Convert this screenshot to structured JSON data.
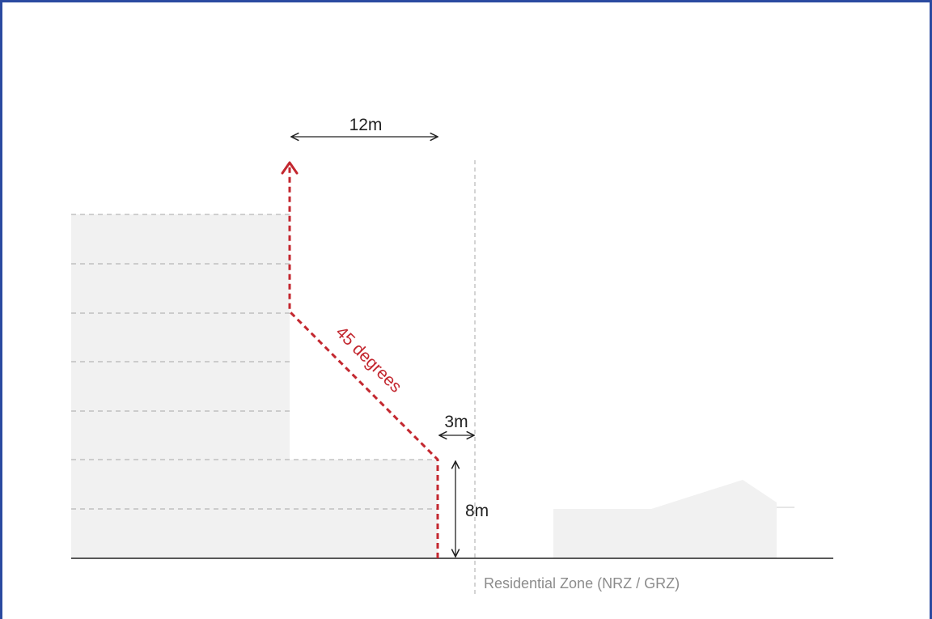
{
  "diagram": {
    "top_setback_label": "12m",
    "side_setback_label": "3m",
    "podium_height_label": "8m",
    "angle_label": "45 degrees",
    "zone_label": "Residential Zone (NRZ / GRZ)"
  },
  "colors": {
    "frame": "#2b4aa0",
    "building_fill": "#f1f1f1",
    "envelope_line": "#c3272f",
    "dimension_line": "#222222",
    "floor_line": "#a8a8a8",
    "zone_label": "#8c8c8c"
  }
}
